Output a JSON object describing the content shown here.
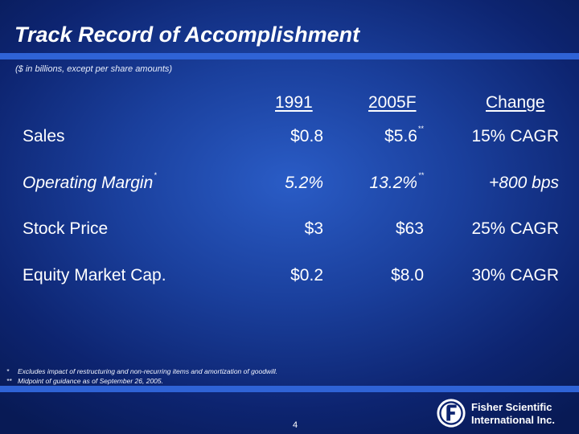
{
  "slide": {
    "title": "Track Record of Accomplishment",
    "subtitle": "($ in billions, except per share amounts)",
    "page_number": "4"
  },
  "table": {
    "headers": [
      "1991",
      "2005F",
      "Change"
    ],
    "rows": [
      {
        "label": "Sales",
        "label_mark": "",
        "v1991": "$0.8",
        "v2005": "$5.6",
        "v2005_mark": "**",
        "change": "15% CAGR"
      },
      {
        "label": "Operating Margin",
        "label_mark": "*",
        "v1991": "5.2%",
        "v2005": "13.2%",
        "v2005_mark": "**",
        "change": "+800 bps"
      },
      {
        "label": "Stock Price",
        "label_mark": "",
        "v1991": "$3",
        "v2005": "$63",
        "v2005_mark": "",
        "change": "25% CAGR"
      },
      {
        "label": "Equity Market Cap.",
        "label_mark": "",
        "v1991": "$0.2",
        "v2005": "$8.0",
        "v2005_mark": "",
        "change": "30% CAGR"
      }
    ]
  },
  "footnotes": [
    {
      "mark": "*",
      "text": "Excludes impact of restructuring and non-recurring items and amortization of goodwill."
    },
    {
      "mark": "**",
      "text": "Midpoint of guidance as of September 26, 2005."
    }
  ],
  "logo": {
    "line1": "Fisher Scientific",
    "line2": "International Inc.",
    "icon": "fisher-f-logo-icon"
  },
  "colors": {
    "background_dark": "#081a55",
    "background_mid": "#1a3f9c",
    "background_light": "#2a5cc6",
    "rule": "#2f63d6",
    "text": "#ffffff"
  }
}
